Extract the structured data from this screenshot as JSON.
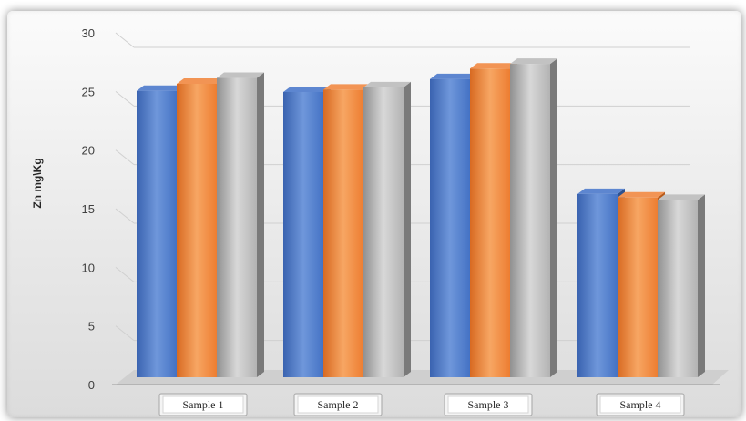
{
  "colors": {
    "series": [
      "#4472C4",
      "#ED7D31",
      "#A5A5A5"
    ],
    "gridline": "#d0d0d0",
    "floor": "#cfcfcf"
  },
  "chart_data": {
    "type": "bar",
    "style": "3d-clustered-column",
    "categories": [
      "Sample 1",
      "Sample 2",
      "Sample 3",
      "Sample 4"
    ],
    "series": [
      {
        "values": [
          23.8,
          23.7,
          24.8,
          15.0
        ]
      },
      {
        "values": [
          24.4,
          23.9,
          25.7,
          14.7
        ]
      },
      {
        "values": [
          24.9,
          24.1,
          26.1,
          14.5
        ]
      }
    ],
    "title": "",
    "xlabel": "",
    "ylabel": "Zn mg\\Kg",
    "ylim": [
      0,
      30
    ],
    "yticks": [
      0,
      5,
      10,
      15,
      20,
      25,
      30
    ],
    "grid": true,
    "legend": "none"
  }
}
